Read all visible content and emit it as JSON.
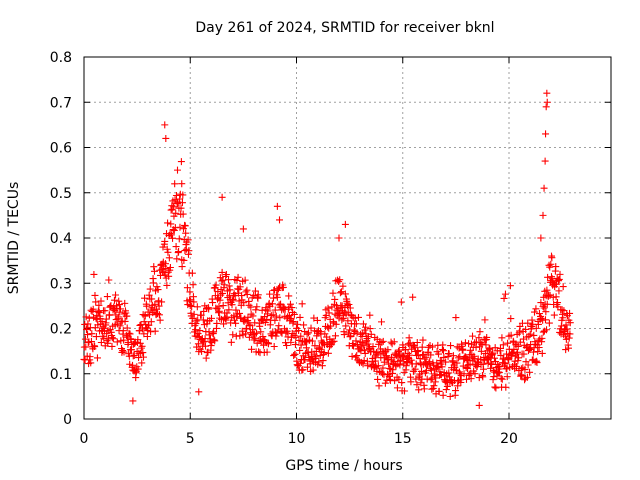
{
  "chart_data": {
    "type": "scatter",
    "title": "Day 261 of 2024, SRMTID for receiver bknl",
    "xlabel": "GPS time / hours",
    "ylabel": "SRMTID / TECUs",
    "xlim": [
      0,
      24.8
    ],
    "ylim": [
      0,
      0.8
    ],
    "x_ticks": [
      0,
      5,
      10,
      15,
      20
    ],
    "x_tick_labels": [
      "0",
      "5",
      "10",
      "15",
      "20"
    ],
    "y_ticks": [
      0,
      0.1,
      0.2,
      0.3,
      0.4,
      0.5,
      0.6,
      0.7,
      0.8
    ],
    "y_tick_labels": [
      "0",
      "0.1",
      "0.2",
      "0.3",
      "0.4",
      "0.5",
      "0.6",
      "0.7",
      "0.8"
    ],
    "grid": true,
    "marker": "+",
    "marker_color": "#ff0000",
    "trend_knots": {
      "x": [
        0,
        0.5,
        1,
        1.5,
        2,
        2.3,
        2.6,
        3,
        3.5,
        4,
        4.3,
        4.7,
        5,
        5.5,
        6,
        6.5,
        7,
        7.5,
        8,
        8.5,
        9,
        9.5,
        10,
        10.5,
        11,
        11.5,
        12,
        12.5,
        13,
        13.5,
        14,
        14.5,
        15,
        15.5,
        16,
        16.5,
        17,
        17.5,
        18,
        18.5,
        19,
        19.5,
        20,
        20.5,
        21,
        21.5,
        22,
        22.5,
        22.9
      ],
      "y": [
        0.17,
        0.2,
        0.22,
        0.21,
        0.19,
        0.12,
        0.15,
        0.24,
        0.27,
        0.38,
        0.45,
        0.4,
        0.28,
        0.17,
        0.22,
        0.28,
        0.24,
        0.25,
        0.22,
        0.2,
        0.24,
        0.22,
        0.17,
        0.15,
        0.17,
        0.2,
        0.26,
        0.22,
        0.15,
        0.14,
        0.13,
        0.12,
        0.11,
        0.13,
        0.12,
        0.12,
        0.1,
        0.11,
        0.12,
        0.15,
        0.13,
        0.12,
        0.13,
        0.15,
        0.15,
        0.2,
        0.3,
        0.23,
        0.18
      ]
    },
    "peaks": [
      {
        "x": 3.8,
        "y": 0.65
      },
      {
        "x": 3.85,
        "y": 0.62
      },
      {
        "x": 4.4,
        "y": 0.55
      },
      {
        "x": 4.6,
        "y": 0.52
      },
      {
        "x": 6.5,
        "y": 0.49
      },
      {
        "x": 7.5,
        "y": 0.42
      },
      {
        "x": 9.1,
        "y": 0.47
      },
      {
        "x": 9.2,
        "y": 0.44
      },
      {
        "x": 12.3,
        "y": 0.43
      },
      {
        "x": 12.0,
        "y": 0.4
      },
      {
        "x": 21.5,
        "y": 0.4
      },
      {
        "x": 21.6,
        "y": 0.45
      },
      {
        "x": 21.65,
        "y": 0.51
      },
      {
        "x": 21.7,
        "y": 0.57
      },
      {
        "x": 21.72,
        "y": 0.63
      },
      {
        "x": 21.75,
        "y": 0.69
      },
      {
        "x": 21.78,
        "y": 0.72
      },
      {
        "x": 21.8,
        "y": 0.7
      },
      {
        "x": 22.0,
        "y": 0.36
      },
      {
        "x": 2.3,
        "y": 0.04
      },
      {
        "x": 5.4,
        "y": 0.06
      },
      {
        "x": 18.6,
        "y": 0.03
      }
    ],
    "n_points_per_hour": 60,
    "x_end": 22.9
  }
}
